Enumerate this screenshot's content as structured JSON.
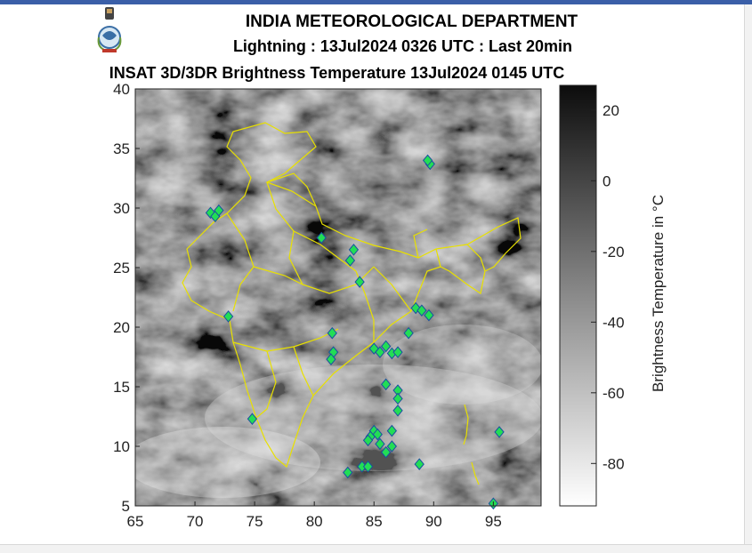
{
  "header": {
    "org": "INDIA METEOROLOGICAL DEPARTMENT",
    "subtitle": "Lightning : 13Jul2024 0326 UTC : Last 20min",
    "product": "INSAT 3D/3DR Brightness Temperature 13Jul2024    0145 UTC",
    "logo_icon": "imd-emblem-icon"
  },
  "map": {
    "lon_range": [
      65,
      99
    ],
    "lat_range": [
      5,
      40
    ],
    "x_ticks": [
      "65",
      "70",
      "75",
      "80",
      "85",
      "90",
      "95"
    ],
    "y_ticks": [
      "40",
      "35",
      "30",
      "25",
      "20",
      "15",
      "10",
      "5"
    ],
    "border_color": "#e8e000",
    "lightning_marker_color": "#22dd55",
    "lightning_points": [
      [
        71.3,
        29.6
      ],
      [
        71.7,
        29.3
      ],
      [
        72.0,
        29.8
      ],
      [
        80.6,
        27.5
      ],
      [
        83.3,
        26.5
      ],
      [
        83.0,
        25.6
      ],
      [
        83.8,
        23.8
      ],
      [
        89.7,
        33.7
      ],
      [
        89.5,
        34.0
      ],
      [
        72.8,
        20.9
      ],
      [
        81.5,
        19.5
      ],
      [
        81.6,
        17.9
      ],
      [
        81.4,
        17.3
      ],
      [
        85.0,
        18.2
      ],
      [
        85.5,
        17.9
      ],
      [
        86.0,
        18.4
      ],
      [
        86.5,
        17.8
      ],
      [
        87.0,
        17.9
      ],
      [
        87.9,
        19.5
      ],
      [
        88.5,
        21.6
      ],
      [
        89.0,
        21.4
      ],
      [
        89.6,
        21.0
      ],
      [
        86.0,
        15.2
      ],
      [
        87.0,
        14.7
      ],
      [
        87.0,
        14.0
      ],
      [
        87.0,
        13.0
      ],
      [
        74.8,
        12.3
      ],
      [
        85.0,
        11.3
      ],
      [
        85.3,
        11.0
      ],
      [
        84.7,
        10.8
      ],
      [
        84.5,
        10.5
      ],
      [
        85.5,
        10.2
      ],
      [
        86.5,
        11.3
      ],
      [
        86.5,
        10.0
      ],
      [
        86.0,
        9.5
      ],
      [
        84.0,
        8.3
      ],
      [
        84.5,
        8.3
      ],
      [
        82.8,
        7.8
      ],
      [
        88.8,
        8.5
      ],
      [
        95.0,
        5.2
      ],
      [
        95.5,
        11.2
      ]
    ]
  },
  "colorbar": {
    "label": "Brightness Temperature in  °C",
    "ticks": [
      "20",
      "0",
      "-20",
      "-40",
      "-60",
      "-80"
    ],
    "range": [
      -92,
      27
    ]
  }
}
